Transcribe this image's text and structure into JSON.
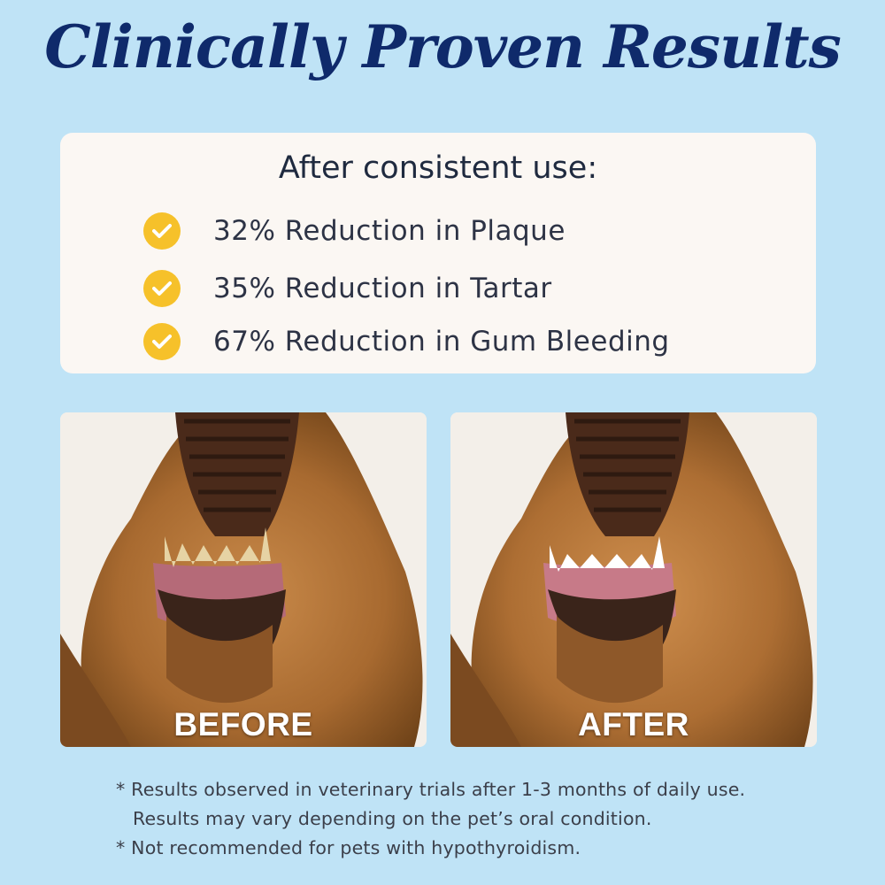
{
  "title": "Clinically Proven Results",
  "card": {
    "heading": "After consistent use:",
    "benefits": [
      {
        "icon": "check-icon",
        "text": "32% Reduction in Plaque"
      },
      {
        "icon": "check-icon",
        "text": "35% Reduction in Tartar"
      },
      {
        "icon": "check-icon",
        "text": "67% Reduction in Gum Bleeding"
      }
    ]
  },
  "comparison": {
    "before_label": "BEFORE",
    "after_label": "AFTER"
  },
  "footnotes": {
    "line1": "* Results observed in veterinary trials after 1-3 months of daily use.",
    "line2": "Results may vary depending on the pet’s oral condition.",
    "line3": "* Not recommended for pets with hypothyroidism."
  },
  "colors": {
    "background": "#bfe3f6",
    "title": "#0f2a6b",
    "check": "#f6c12a",
    "card": "#fbf7f3"
  }
}
